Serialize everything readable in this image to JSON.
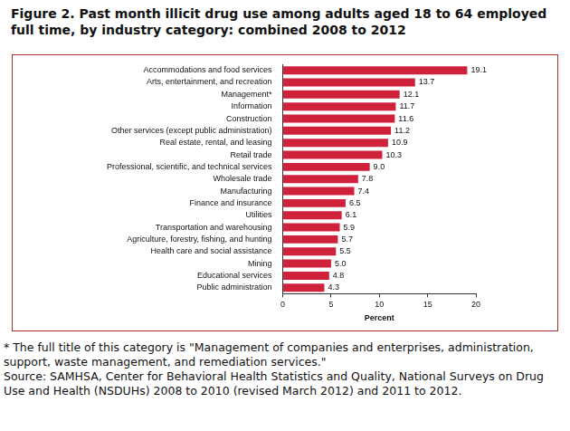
{
  "chart_data": {
    "type": "bar",
    "title": "Figure 2. Past month illicit drug use among adults aged 18 to 64 employed full time, by industry category: combined 2008 to 2012",
    "x_label": "Percent",
    "annotations": [
      "* The full title of this category is \"Management of companies and enterprises, administration, support, waste management, and remediation services.\"",
      "Source: SAMHSA, Center for Behavioral Health Statistics and Quality, National Surveys on Drug Use and Health (NSDUHs) 2008 to 2010 (revised March 2012) and 2011 to 2012."
    ],
    "categories": [
      "Accommodations and food services",
      "Arts, entertainment, and recreation",
      "Management*",
      "Information",
      "Construction",
      "Other services (except public administration)",
      "Real estate, rental, and leasing",
      "Retail trade",
      "Professional, scientific, and technical services",
      "Wholesale trade",
      "Manufacturing",
      "Finance and insurance",
      "Utilities",
      "Transportation and warehousing",
      "Agriculture, forestry, fishing, and hunting",
      "Health care and social assistance",
      "Mining",
      "Educational services",
      "Public administration"
    ],
    "values": [
      19.1,
      13.7,
      12.1,
      11.7,
      11.6,
      11.2,
      10.9,
      10.3,
      9.0,
      7.8,
      7.4,
      6.5,
      6.1,
      5.9,
      5.7,
      5.5,
      5.0,
      4.8,
      4.3
    ],
    "value_labels": [
      "19.1",
      "13.7",
      "12.1",
      "11.7",
      "11.6",
      "11.2",
      "10.9",
      "10.3",
      "9.0",
      "7.8",
      "7.4",
      "6.5",
      "6.1",
      "5.9",
      "5.7",
      "5.5",
      "5.0",
      "4.8",
      "4.3"
    ],
    "color": "#d0213a",
    "orientation": "horizontal",
    "data_labels": true,
    "grid": false,
    "xlim": [
      0,
      20
    ],
    "xticks": [
      0,
      5,
      10,
      15,
      20
    ]
  }
}
